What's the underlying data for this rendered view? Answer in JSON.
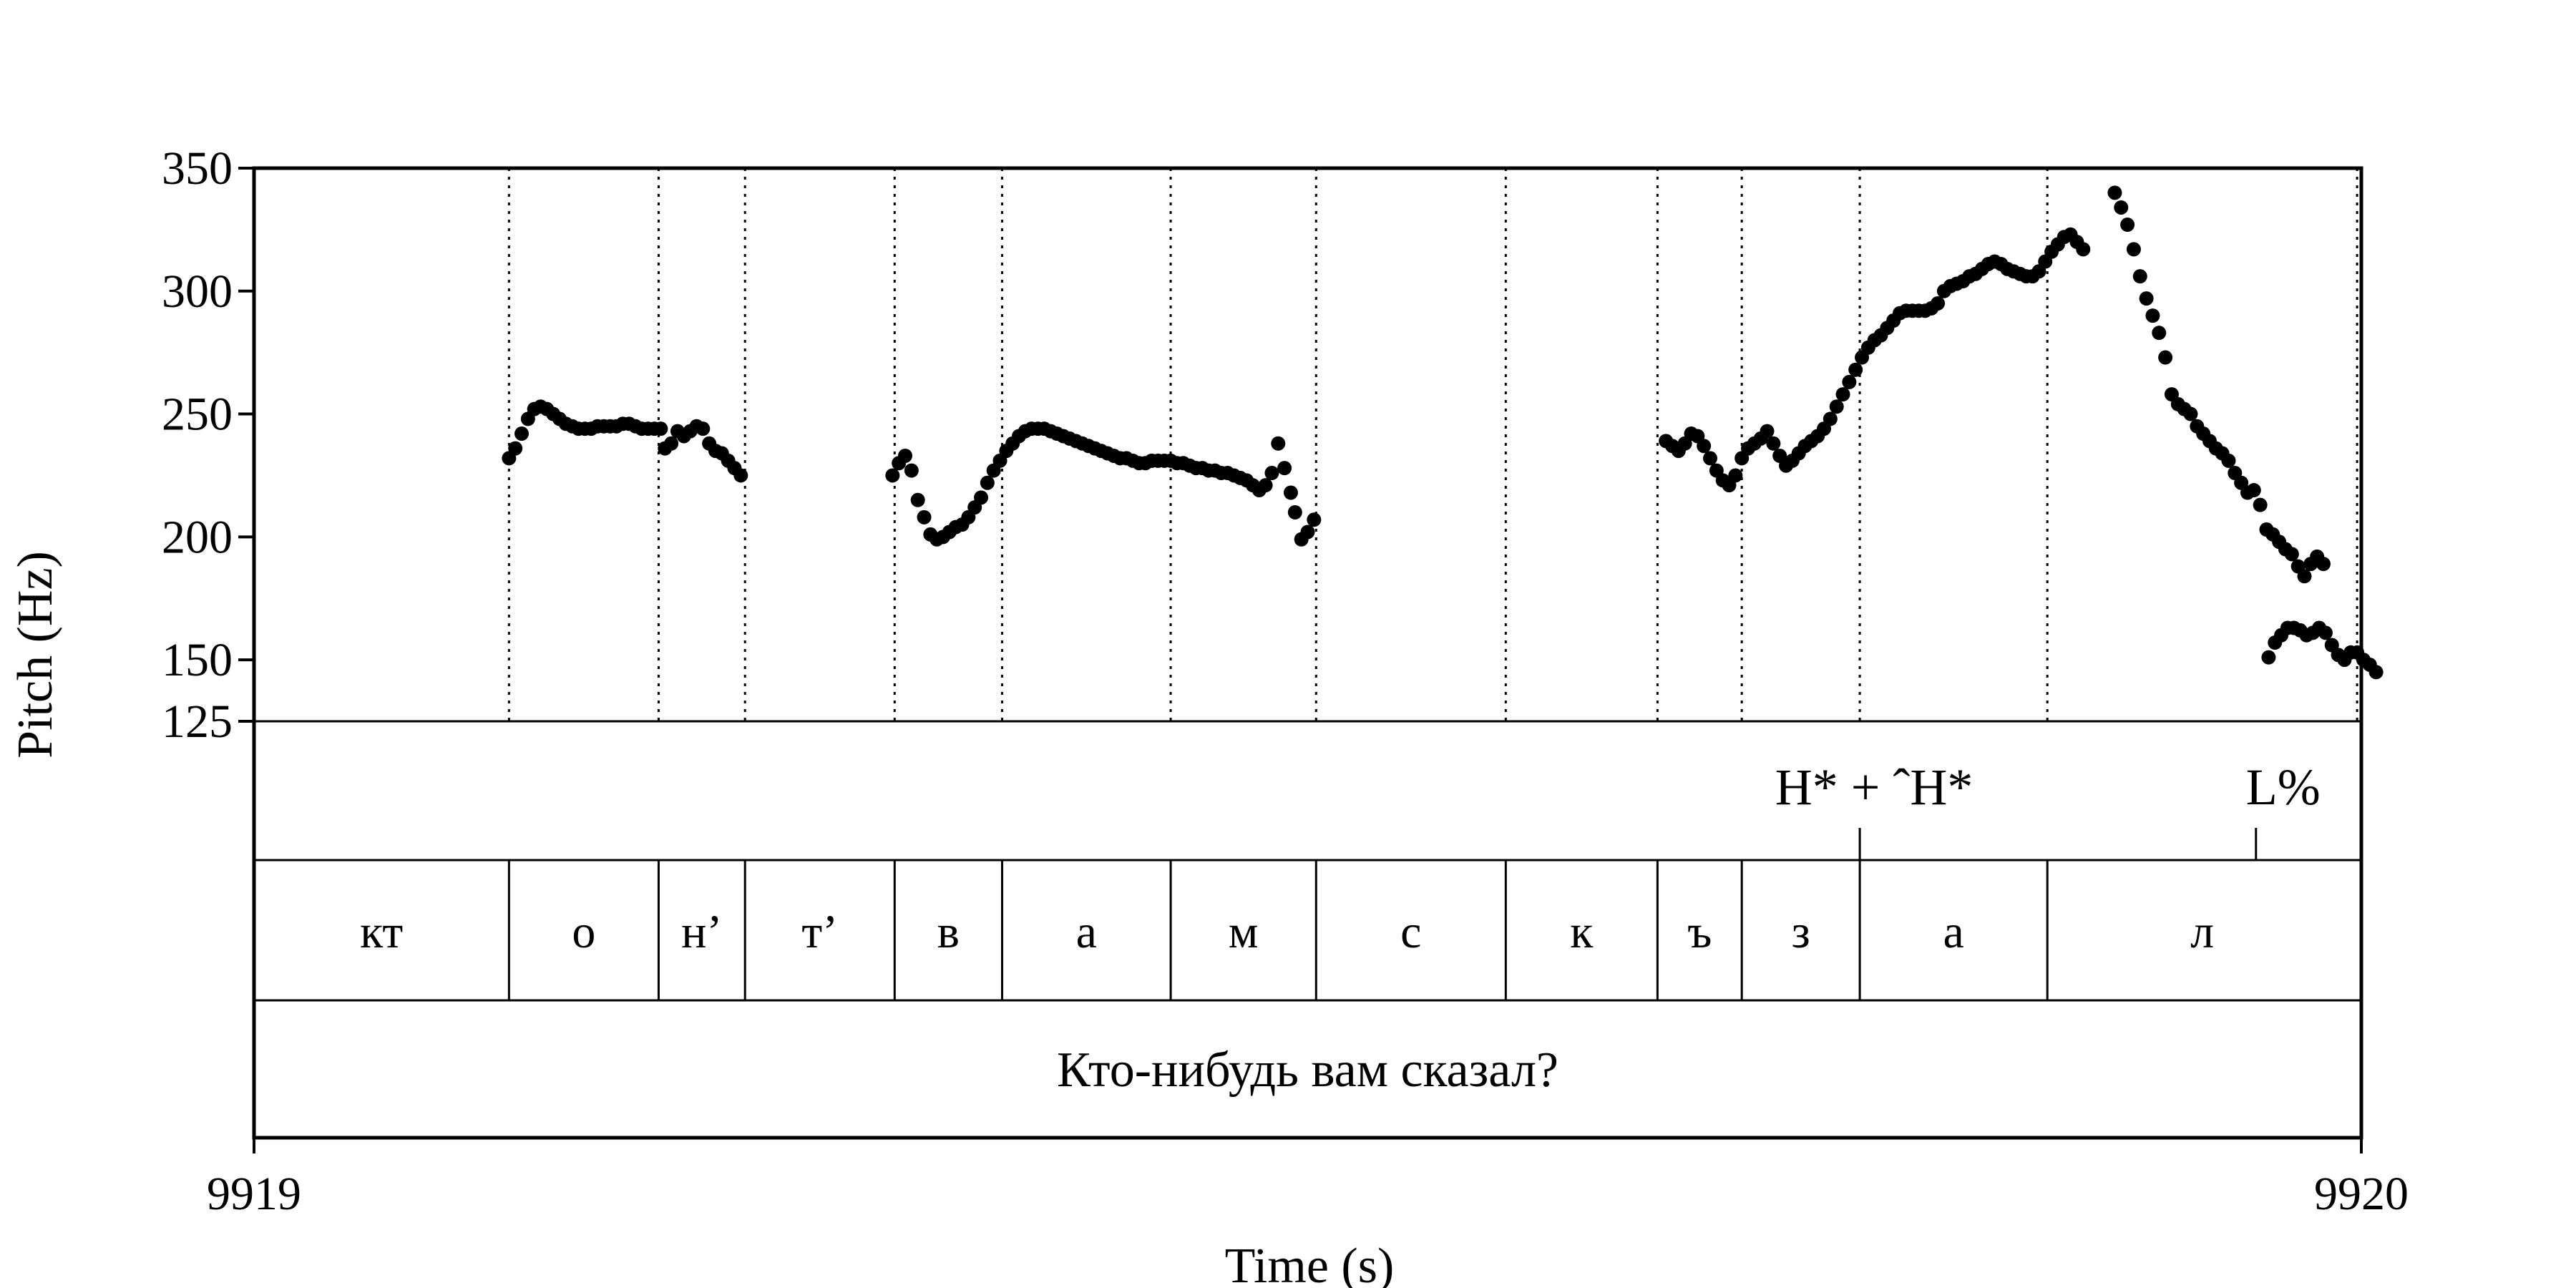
{
  "chart_data": {
    "type": "scatter",
    "title": "",
    "xlabel": "Time (s)",
    "ylabel": "Pitch (Hz)",
    "xlim": [
      9919,
      9920
    ],
    "ylim": [
      125,
      350
    ],
    "x_ticks": [
      "9919",
      "9920"
    ],
    "y_ticks": [
      {
        "value": 350,
        "label": "350"
      },
      {
        "value": 300,
        "label": "300"
      },
      {
        "value": 250,
        "label": "250"
      },
      {
        "value": 200,
        "label": "200"
      },
      {
        "value": 150,
        "label": "150"
      },
      {
        "value": 125,
        "label": "125"
      }
    ],
    "grid": false,
    "segment_boundaries": [
      9919.121,
      9919.192,
      9919.233,
      9919.304,
      9919.355,
      9919.435,
      9919.504,
      9919.594,
      9919.666,
      9919.706,
      9919.762,
      9919.851,
      9919.998
    ],
    "segments": [
      {
        "label": "кт",
        "start": 9919.0,
        "end": 9919.121
      },
      {
        "label": "о",
        "start": 9919.121,
        "end": 9919.192
      },
      {
        "label": "н’",
        "start": 9919.192,
        "end": 9919.233
      },
      {
        "label": "т’",
        "start": 9919.233,
        "end": 9919.304
      },
      {
        "label": "в",
        "start": 9919.304,
        "end": 9919.355
      },
      {
        "label": "а",
        "start": 9919.355,
        "end": 9919.435
      },
      {
        "label": "м",
        "start": 9919.435,
        "end": 9919.504
      },
      {
        "label": "с",
        "start": 9919.504,
        "end": 9919.594
      },
      {
        "label": "к",
        "start": 9919.594,
        "end": 9919.666
      },
      {
        "label": "ъ",
        "start": 9919.666,
        "end": 9919.706
      },
      {
        "label": "з",
        "start": 9919.706,
        "end": 9919.762
      },
      {
        "label": "а",
        "start": 9919.762,
        "end": 9919.851
      },
      {
        "label": "л",
        "start": 9919.851,
        "end": 9919.998
      }
    ],
    "tones": [
      {
        "label": "H* + ˆH*",
        "time": 9919.762
      },
      {
        "label": "L%",
        "time": 9919.95
      }
    ],
    "sentence": "Кто-нибудь вам сказал?",
    "series": [
      {
        "values": [
          [
            9919.121,
            232
          ],
          [
            9919.124,
            236
          ],
          [
            9919.127,
            242
          ],
          [
            9919.13,
            248
          ],
          [
            9919.133,
            252
          ],
          [
            9919.136,
            253
          ],
          [
            9919.139,
            252
          ],
          [
            9919.142,
            250
          ],
          [
            9919.145,
            248
          ],
          [
            9919.148,
            246
          ],
          [
            9919.151,
            245
          ],
          [
            9919.154,
            244
          ],
          [
            9919.157,
            244
          ],
          [
            9919.16,
            244
          ],
          [
            9919.163,
            245
          ],
          [
            9919.166,
            245
          ],
          [
            9919.169,
            245
          ],
          [
            9919.172,
            245
          ],
          [
            9919.175,
            246
          ],
          [
            9919.178,
            246
          ],
          [
            9919.181,
            245
          ],
          [
            9919.184,
            244
          ],
          [
            9919.187,
            244
          ],
          [
            9919.19,
            244
          ],
          [
            9919.193,
            244
          ],
          [
            9919.195,
            236
          ],
          [
            9919.198,
            238
          ],
          [
            9919.201,
            243
          ],
          [
            9919.204,
            241
          ],
          [
            9919.207,
            243
          ],
          [
            9919.21,
            245
          ],
          [
            9919.213,
            244
          ],
          [
            9919.216,
            238
          ],
          [
            9919.219,
            235
          ],
          [
            9919.222,
            234
          ],
          [
            9919.225,
            231
          ],
          [
            9919.228,
            228
          ],
          [
            9919.231,
            225
          ],
          [
            9919.303,
            225
          ],
          [
            9919.306,
            230
          ],
          [
            9919.309,
            233
          ],
          [
            9919.312,
            227
          ],
          [
            9919.315,
            215
          ],
          [
            9919.318,
            208
          ],
          [
            9919.321,
            201
          ],
          [
            9919.324,
            199
          ],
          [
            9919.327,
            200
          ],
          [
            9919.33,
            202
          ],
          [
            9919.333,
            204
          ],
          [
            9919.336,
            205
          ],
          [
            9919.339,
            208
          ],
          [
            9919.342,
            212
          ],
          [
            9919.345,
            216
          ],
          [
            9919.348,
            222
          ],
          [
            9919.351,
            227
          ],
          [
            9919.354,
            231
          ],
          [
            9919.357,
            235
          ],
          [
            9919.36,
            238
          ],
          [
            9919.363,
            241
          ],
          [
            9919.366,
            243
          ],
          [
            9919.369,
            244
          ],
          [
            9919.372,
            244
          ],
          [
            9919.375,
            244
          ],
          [
            9919.378,
            243
          ],
          [
            9919.381,
            242
          ],
          [
            9919.384,
            241
          ],
          [
            9919.387,
            240
          ],
          [
            9919.39,
            239
          ],
          [
            9919.393,
            238
          ],
          [
            9919.396,
            237
          ],
          [
            9919.399,
            236
          ],
          [
            9919.402,
            235
          ],
          [
            9919.405,
            234
          ],
          [
            9919.408,
            233
          ],
          [
            9919.411,
            232
          ],
          [
            9919.414,
            232
          ],
          [
            9919.417,
            231
          ],
          [
            9919.42,
            230
          ],
          [
            9919.423,
            230
          ],
          [
            9919.426,
            231
          ],
          [
            9919.429,
            231
          ],
          [
            9919.432,
            231
          ],
          [
            9919.435,
            231
          ],
          [
            9919.438,
            230
          ],
          [
            9919.441,
            230
          ],
          [
            9919.444,
            229
          ],
          [
            9919.447,
            228
          ],
          [
            9919.45,
            228
          ],
          [
            9919.453,
            227
          ],
          [
            9919.456,
            227
          ],
          [
            9919.459,
            226
          ],
          [
            9919.462,
            226
          ],
          [
            9919.465,
            225
          ],
          [
            9919.468,
            224
          ],
          [
            9919.471,
            223
          ],
          [
            9919.474,
            221
          ],
          [
            9919.477,
            219
          ],
          [
            9919.48,
            221
          ],
          [
            9919.483,
            226
          ],
          [
            9919.486,
            238
          ],
          [
            9919.489,
            228
          ],
          [
            9919.492,
            218
          ],
          [
            9919.494,
            210
          ],
          [
            9919.497,
            199
          ],
          [
            9919.5,
            202
          ],
          [
            9919.503,
            207
          ],
          [
            9919.67,
            239
          ],
          [
            9919.673,
            237
          ],
          [
            9919.676,
            235
          ],
          [
            9919.679,
            238
          ],
          [
            9919.682,
            242
          ],
          [
            9919.685,
            241
          ],
          [
            9919.688,
            237
          ],
          [
            9919.691,
            232
          ],
          [
            9919.694,
            227
          ],
          [
            9919.697,
            223
          ],
          [
            9919.7,
            221
          ],
          [
            9919.703,
            225
          ],
          [
            9919.706,
            232
          ],
          [
            9919.709,
            236
          ],
          [
            9919.712,
            238
          ],
          [
            9919.715,
            240
          ],
          [
            9919.718,
            243
          ],
          [
            9919.721,
            238
          ],
          [
            9919.724,
            233
          ],
          [
            9919.727,
            229
          ],
          [
            9919.73,
            231
          ],
          [
            9919.733,
            234
          ],
          [
            9919.736,
            237
          ],
          [
            9919.739,
            239
          ],
          [
            9919.742,
            241
          ],
          [
            9919.745,
            244
          ],
          [
            9919.748,
            248
          ],
          [
            9919.751,
            253
          ],
          [
            9919.754,
            258
          ],
          [
            9919.757,
            263
          ],
          [
            9919.76,
            268
          ],
          [
            9919.763,
            273
          ],
          [
            9919.766,
            277
          ],
          [
            9919.769,
            280
          ],
          [
            9919.772,
            282
          ],
          [
            9919.775,
            285
          ],
          [
            9919.778,
            288
          ],
          [
            9919.781,
            291
          ],
          [
            9919.784,
            292
          ],
          [
            9919.787,
            292
          ],
          [
            9919.79,
            292
          ],
          [
            9919.793,
            292
          ],
          [
            9919.796,
            293
          ],
          [
            9919.799,
            295
          ],
          [
            9919.802,
            300
          ],
          [
            9919.805,
            302
          ],
          [
            9919.808,
            303
          ],
          [
            9919.811,
            304
          ],
          [
            9919.814,
            306
          ],
          [
            9919.817,
            307
          ],
          [
            9919.82,
            309
          ],
          [
            9919.823,
            311
          ],
          [
            9919.826,
            312
          ],
          [
            9919.829,
            311
          ],
          [
            9919.832,
            309
          ],
          [
            9919.835,
            308
          ],
          [
            9919.838,
            307
          ],
          [
            9919.841,
            306
          ],
          [
            9919.844,
            306
          ],
          [
            9919.847,
            308
          ],
          [
            9919.85,
            312
          ],
          [
            9919.853,
            316
          ],
          [
            9919.856,
            319
          ],
          [
            9919.859,
            322
          ],
          [
            9919.862,
            323
          ],
          [
            9919.865,
            320
          ],
          [
            9919.868,
            317
          ],
          [
            9919.883,
            340
          ],
          [
            9919.886,
            334
          ],
          [
            9919.889,
            327
          ],
          [
            9919.892,
            317
          ],
          [
            9919.895,
            306
          ],
          [
            9919.898,
            297
          ],
          [
            9919.901,
            290
          ],
          [
            9919.904,
            283
          ],
          [
            9919.907,
            273
          ],
          [
            9919.91,
            258
          ],
          [
            9919.913,
            254
          ],
          [
            9919.916,
            252
          ],
          [
            9919.919,
            250
          ],
          [
            9919.922,
            245
          ],
          [
            9919.925,
            242
          ],
          [
            9919.928,
            239
          ],
          [
            9919.931,
            236
          ],
          [
            9919.934,
            234
          ],
          [
            9919.937,
            231
          ],
          [
            9919.94,
            226
          ],
          [
            9919.943,
            222
          ],
          [
            9919.946,
            218
          ],
          [
            9919.949,
            219
          ],
          [
            9919.952,
            213
          ],
          [
            9919.955,
            203
          ],
          [
            9919.958,
            201
          ],
          [
            9919.961,
            198
          ],
          [
            9919.964,
            195
          ],
          [
            9919.967,
            193
          ],
          [
            9919.97,
            188
          ],
          [
            9919.973,
            184
          ],
          [
            9919.976,
            189
          ],
          [
            9919.979,
            192
          ],
          [
            9919.982,
            189
          ],
          [
            9919.956,
            151
          ],
          [
            9919.959,
            157
          ],
          [
            9919.962,
            160
          ],
          [
            9919.965,
            163
          ],
          [
            9919.968,
            163
          ],
          [
            9919.971,
            162
          ],
          [
            9919.974,
            160
          ],
          [
            9919.977,
            161
          ],
          [
            9919.98,
            163
          ],
          [
            9919.983,
            161
          ],
          [
            9919.986,
            156
          ],
          [
            9919.989,
            152
          ],
          [
            9919.992,
            150
          ],
          [
            9919.995,
            153
          ],
          [
            9919.998,
            153
          ],
          [
            9920.001,
            150
          ],
          [
            9920.004,
            148
          ],
          [
            9920.007,
            145
          ]
        ]
      }
    ]
  }
}
